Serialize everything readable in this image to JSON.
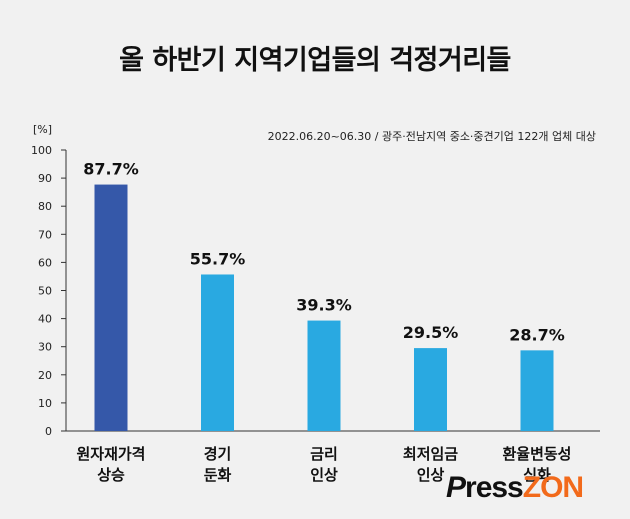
{
  "title": "올 하반기 지역기업들의 걱정거리들",
  "logo": {
    "p": "P",
    "ress": "ress",
    "zon": "ZON"
  },
  "chart_data": {
    "type": "bar",
    "title": "올 하반기 지역기업들의 걱정거리들",
    "subtitle": "2022.06.20~06.30 / 광주·전남지역 중소·중견기업 122개 업체 대상",
    "ylabel": "[%]",
    "xlabel": "",
    "ylim": [
      0,
      100
    ],
    "yticks": [
      "0",
      "10",
      "20",
      "30",
      "40",
      "50",
      "60",
      "70",
      "80",
      "90",
      "100"
    ],
    "categories": [
      [
        "원자재가격",
        "상승"
      ],
      [
        "경기",
        "둔화"
      ],
      [
        "금리",
        "인상"
      ],
      [
        "최저임금",
        "인상"
      ],
      [
        "환율변동성",
        "심화"
      ]
    ],
    "values": [
      87.7,
      55.7,
      39.3,
      29.5,
      28.7
    ],
    "value_labels": [
      "87.7%",
      "55.7%",
      "39.3%",
      "29.5%",
      "28.7%"
    ],
    "bar_colors": [
      "#3558a9",
      "#29a9e1",
      "#29a9e1",
      "#29a9e1",
      "#29a9e1"
    ],
    "grid": false
  }
}
